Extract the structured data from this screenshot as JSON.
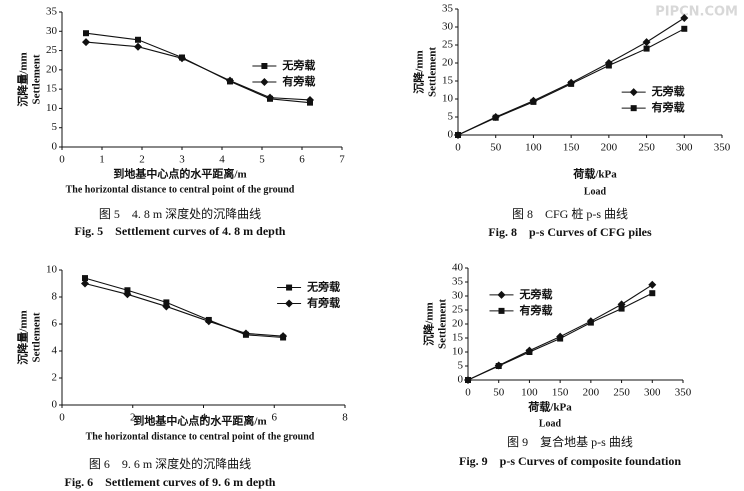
{
  "watermark": "PIPCN.COM",
  "chart_data": [
    {
      "type": "line",
      "ylabel": "沉降量/mm",
      "ylabel_en": "Settlement",
      "xlabel": "到地基中心点的水平距离/m",
      "xlabel_en": "The horizontal distance to central point of the ground",
      "caption": "图 5　4. 8 m 深度处的沉降曲线",
      "caption_en": "Fig. 5　Settlement curves of 4. 8 m depth",
      "xlim": [
        0,
        7
      ],
      "xticks": [
        0,
        1,
        2,
        3,
        4,
        5,
        6,
        7
      ],
      "ylim": [
        0,
        35
      ],
      "yticks": [
        0,
        5,
        10,
        15,
        20,
        25,
        30,
        35
      ],
      "legend": "center right",
      "series": [
        {
          "name": "无旁载",
          "color": "#111111",
          "marker": "square",
          "x": [
            0.6,
            1.9,
            3.0,
            4.2,
            5.2,
            6.2
          ],
          "values": [
            29.5,
            27.8,
            23.2,
            17.0,
            12.5,
            11.5
          ]
        },
        {
          "name": "有旁载",
          "color": "#111111",
          "marker": "diamond",
          "x": [
            0.6,
            1.9,
            3.0,
            4.2,
            5.2,
            6.2
          ],
          "values": [
            27.2,
            26.0,
            23.0,
            17.2,
            12.8,
            12.2
          ]
        }
      ]
    },
    {
      "type": "line",
      "ylabel": "沉降/mm",
      "ylabel_en": "Settlement",
      "xlabel": "荷载/kPa",
      "xlabel_en": "Load",
      "caption": "图 8　CFG 桩 p-s 曲线",
      "caption_en": "Fig. 8　p-s Curves of CFG piles",
      "xlim": [
        0,
        350
      ],
      "xticks": [
        0,
        50,
        100,
        150,
        200,
        250,
        300,
        350
      ],
      "ylim": [
        0,
        35
      ],
      "yticks": [
        0,
        5,
        10,
        15,
        20,
        25,
        30,
        35
      ],
      "legend": "lower right",
      "series": [
        {
          "name": "无旁载",
          "color": "#111111",
          "marker": "diamond",
          "x": [
            0,
            50,
            100,
            150,
            200,
            250,
            300
          ],
          "values": [
            0,
            5,
            9.5,
            14.5,
            20,
            25.8,
            32.5
          ]
        },
        {
          "name": "有旁载",
          "color": "#111111",
          "marker": "square",
          "x": [
            0,
            50,
            100,
            150,
            200,
            250,
            300
          ],
          "values": [
            0,
            4.8,
            9.2,
            14.2,
            19.3,
            24,
            29.5
          ]
        }
      ]
    },
    {
      "type": "line",
      "ylabel": "沉降量/mm",
      "ylabel_en": "Settlement",
      "xlabel": "到地基中心点的水平距离/m",
      "xlabel_en": "The horizontal distance to central point of the ground",
      "caption": "图 6　9. 6 m 深度处的沉降曲线",
      "caption_en": "Fig. 6　Settlement curves of 9. 6 m depth",
      "xlim": [
        0,
        8
      ],
      "xticks": [
        0,
        2,
        4,
        6,
        8
      ],
      "ylim": [
        0,
        10
      ],
      "yticks": [
        0,
        2,
        4,
        6,
        8,
        10
      ],
      "legend": "upper right",
      "series": [
        {
          "name": "无旁载",
          "color": "#111111",
          "marker": "square",
          "x": [
            0.65,
            1.85,
            2.95,
            4.15,
            5.2,
            6.25
          ],
          "values": [
            9.4,
            8.5,
            7.6,
            6.3,
            5.2,
            5.0
          ]
        },
        {
          "name": "有旁载",
          "color": "#111111",
          "marker": "diamond",
          "x": [
            0.65,
            1.85,
            2.95,
            4.15,
            5.2,
            6.25
          ],
          "values": [
            9.0,
            8.2,
            7.3,
            6.2,
            5.3,
            5.1
          ]
        }
      ]
    },
    {
      "type": "line",
      "ylabel": "沉降/mm",
      "ylabel_en": "Settlement",
      "xlabel": "荷载/kPa",
      "xlabel_en": "Load",
      "caption": "图 9　复合地基 p-s 曲线",
      "caption_en": "Fig. 9　p-s Curves of composite foundation",
      "xlim": [
        0,
        350
      ],
      "xticks": [
        0,
        50,
        100,
        150,
        200,
        250,
        300,
        350
      ],
      "ylim": [
        0,
        40
      ],
      "yticks": [
        0,
        5,
        10,
        15,
        20,
        25,
        30,
        35,
        40
      ],
      "legend": "upper left",
      "series": [
        {
          "name": "无旁载",
          "color": "#111111",
          "marker": "diamond",
          "x": [
            0,
            50,
            100,
            150,
            200,
            250,
            300
          ],
          "values": [
            0,
            5.2,
            10.5,
            15.5,
            21,
            27,
            34
          ]
        },
        {
          "name": "有旁载",
          "color": "#111111",
          "marker": "square",
          "x": [
            0,
            50,
            100,
            150,
            200,
            250,
            300
          ],
          "values": [
            0,
            5,
            10,
            14.8,
            20.5,
            25.5,
            31
          ]
        }
      ]
    }
  ]
}
